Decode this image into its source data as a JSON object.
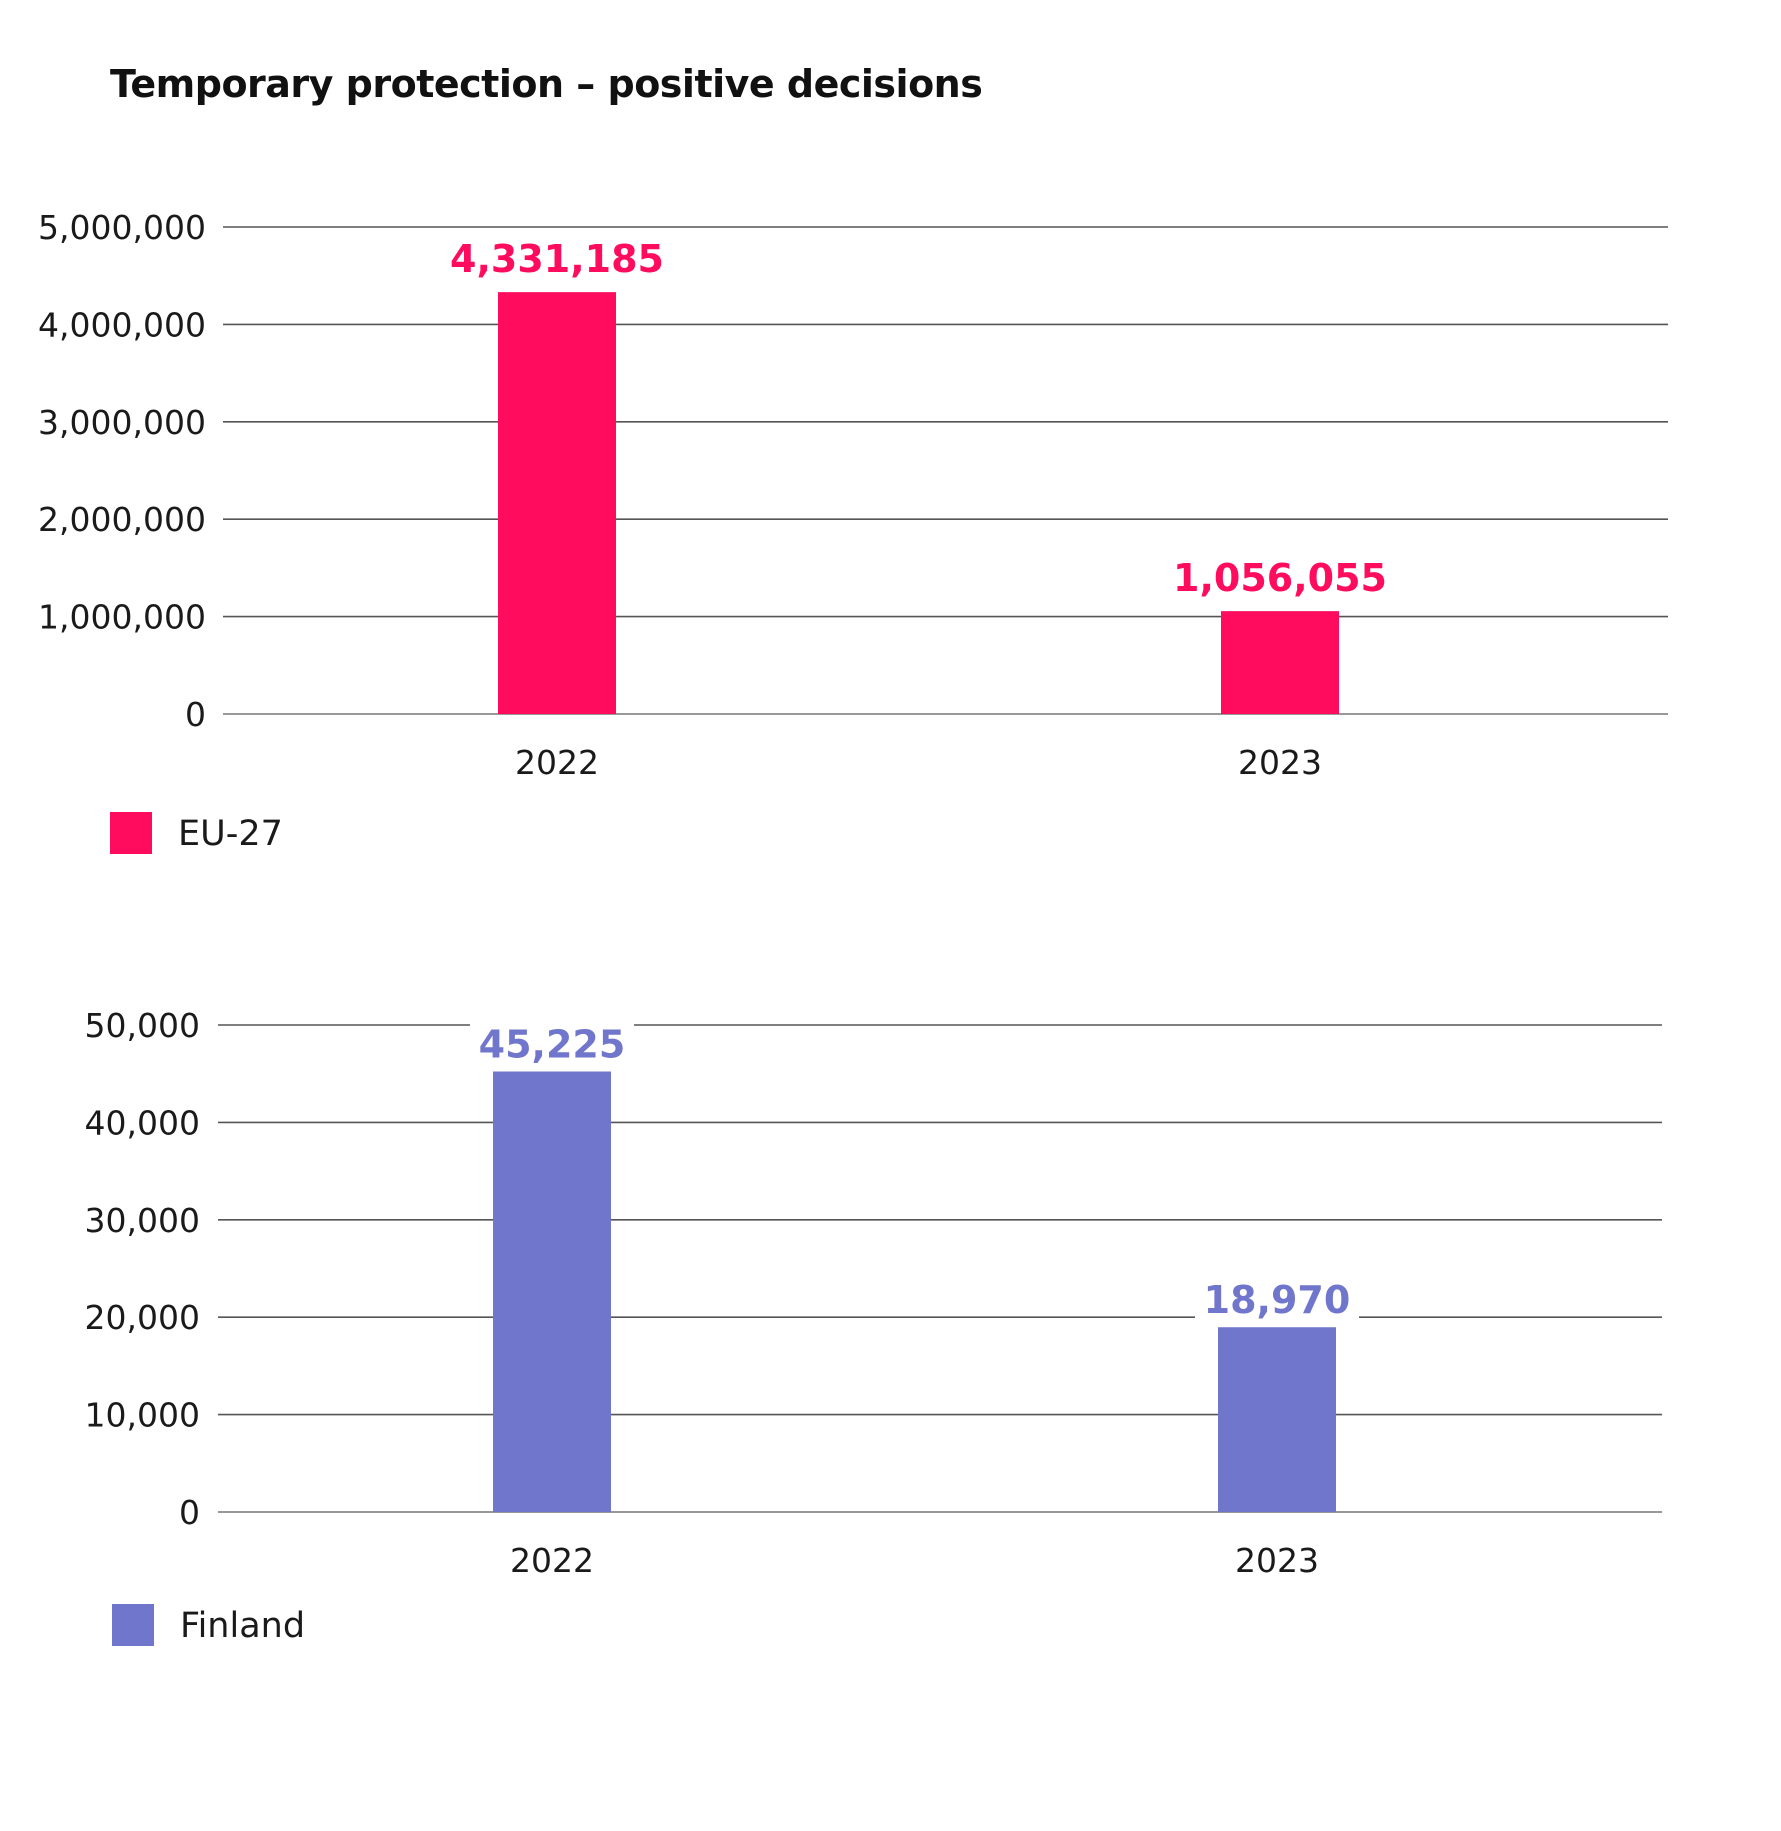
{
  "title": "Temporary protection – positive decisions",
  "chart_data": [
    {
      "type": "bar",
      "categories": [
        "2022",
        "2023"
      ],
      "series": [
        {
          "name": "EU-27",
          "values": [
            4331185,
            1056055
          ],
          "color": "#ff0c5e"
        }
      ],
      "data_labels": [
        "4,331,185",
        "1,056,055"
      ],
      "ylim": [
        0,
        5000000
      ],
      "yticks": [
        0,
        1000000,
        2000000,
        3000000,
        4000000,
        5000000
      ],
      "ytick_labels": [
        "0",
        "1,000,000",
        "2,000,000",
        "3,000,000",
        "4,000,000",
        "5,000,000"
      ],
      "grid": true,
      "legend_position": "bottom-left"
    },
    {
      "type": "bar",
      "categories": [
        "2022",
        "2023"
      ],
      "series": [
        {
          "name": "Finland",
          "values": [
            45225,
            18970
          ],
          "color": "#7076cc"
        }
      ],
      "data_labels": [
        "45,225",
        "18,970"
      ],
      "ylim": [
        0,
        50000
      ],
      "yticks": [
        0,
        10000,
        20000,
        30000,
        40000,
        50000
      ],
      "ytick_labels": [
        "0",
        "10,000",
        "20,000",
        "30,000",
        "40,000",
        "50,000"
      ],
      "grid": true,
      "legend_position": "bottom-left"
    }
  ]
}
